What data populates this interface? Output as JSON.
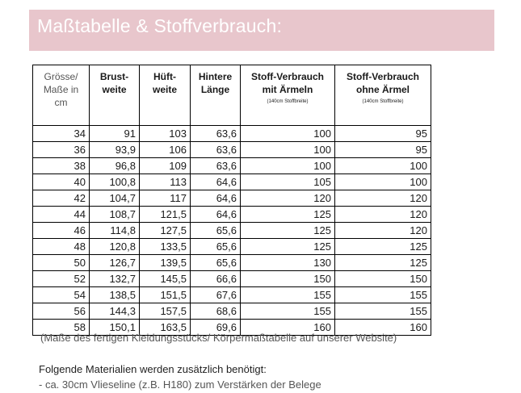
{
  "banner": {
    "title": "Maßtabelle & Stoffverbrauch:",
    "bg_color": "#e8c6cc"
  },
  "table": {
    "headers": [
      {
        "lines": [
          "Grösse/",
          "Maße in",
          "cm"
        ]
      },
      {
        "lines": [
          "Brust-",
          "weite"
        ]
      },
      {
        "lines": [
          "Hüft-",
          "weite"
        ]
      },
      {
        "lines": [
          "Hintere",
          "Länge"
        ]
      },
      {
        "lines": [
          "Stoff-Verbrauch",
          "mit Ärmeln"
        ],
        "note": "(140cm Stoffbreite)"
      },
      {
        "lines": [
          "Stoff-Verbrauch",
          "ohne Ärmel"
        ],
        "note": "(140cm Stoffbreite)"
      }
    ],
    "rows": [
      [
        "34",
        "91",
        "103",
        "63,6",
        "100",
        "95"
      ],
      [
        "36",
        "93,9",
        "106",
        "63,6",
        "100",
        "95"
      ],
      [
        "38",
        "96,8",
        "109",
        "63,6",
        "100",
        "100"
      ],
      [
        "40",
        "100,8",
        "113",
        "64,6",
        "105",
        "100"
      ],
      [
        "42",
        "104,7",
        "117",
        "64,6",
        "120",
        "120"
      ],
      [
        "44",
        "108,7",
        "121,5",
        "64,6",
        "125",
        "120"
      ],
      [
        "46",
        "114,8",
        "127,5",
        "65,6",
        "125",
        "120"
      ],
      [
        "48",
        "120,8",
        "133,5",
        "65,6",
        "125",
        "125"
      ],
      [
        "50",
        "126,7",
        "139,5",
        "65,6",
        "130",
        "125"
      ],
      [
        "52",
        "132,7",
        "145,5",
        "66,6",
        "150",
        "150"
      ],
      [
        "54",
        "138,5",
        "151,5",
        "67,6",
        "155",
        "155"
      ],
      [
        "56",
        "144,3",
        "157,5",
        "68,6",
        "155",
        "155"
      ],
      [
        "58",
        "150,1",
        "163,5",
        "69,6",
        "160",
        "160"
      ]
    ]
  },
  "caption": "(Maße des fertigen Kleidungsstücks/ Körpermaßtabelle auf unserer Website)",
  "materials": {
    "title": "Folgende Materialien werden zusätzlich benötigt:",
    "item": "- ca. 30cm Vlieseline (z.B. H180) zum Verstärken der Belege"
  }
}
